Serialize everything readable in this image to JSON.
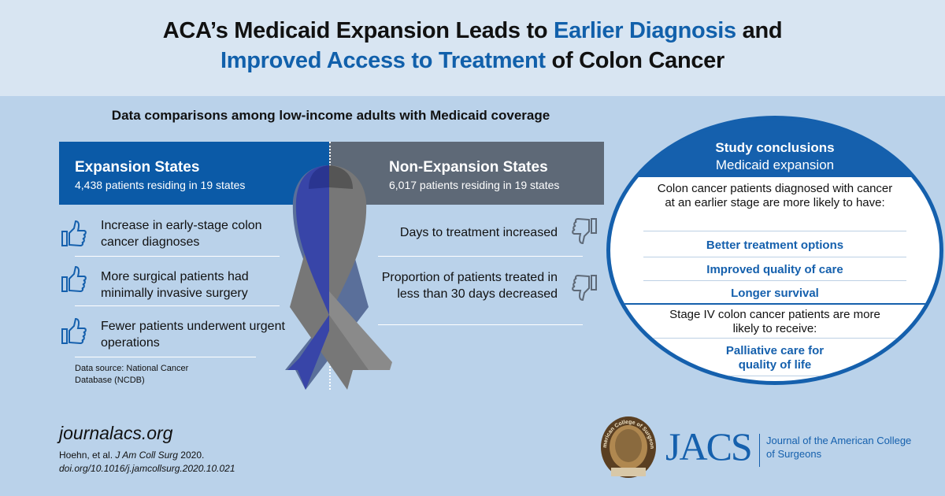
{
  "title": {
    "line1_a": "ACA’s Medicaid Expansion Leads to ",
    "line1_b": "Earlier Diagnosis",
    "line1_c": " and",
    "line2_a": "Improved Access to Treatment",
    "line2_b": " of Colon Cancer"
  },
  "subtitle": "Data comparisons among low-income adults with Medicaid coverage",
  "expansion": {
    "title": "Expansion States",
    "subtitle": "4,438 patients residing in 19 states",
    "items": [
      "Increase in early-stage colon cancer diagnoses",
      "More surgical patients had minimally invasive surgery",
      "Fewer patients underwent urgent operations"
    ],
    "icon": "thumbs-up-icon"
  },
  "non_expansion": {
    "title": "Non-Expansion States",
    "subtitle": "6,017 patients residing in 19 states",
    "items": [
      "Days to treatment increased",
      "Proportion of patients treated in less than 30 days decreased"
    ],
    "icon": "thumbs-down-icon"
  },
  "data_source": "Data source: National Cancer Database (NCDB)",
  "conclusions": {
    "title": "Study conclusions",
    "subtitle": "Medicaid expansion",
    "intro": "Colon cancer patients diagnosed with cancer at an earlier stage are more likely to have:",
    "benefits": [
      "Better treatment options",
      "Improved quality of care",
      "Longer survival"
    ],
    "stage4": "Stage IV colon cancer patients are more likely to receive:",
    "stage4_benefit": "Palliative care for quality of life"
  },
  "footer": {
    "website": "journalacs.org",
    "citation_a": "Hoehn, et al. ",
    "citation_journal": "J Am Coll Surg",
    "citation_b": " 2020.",
    "doi": "doi.org/10.1016/j.jamcollsurg.2020.10.021",
    "logo": "JACS",
    "logo_text": "Journal of the American College of Surgeons",
    "seal_text": "American College of Surgeons"
  },
  "colors": {
    "blue": "#0b5aa7",
    "gray": "#5e6977",
    "background": "#bad2ea"
  }
}
